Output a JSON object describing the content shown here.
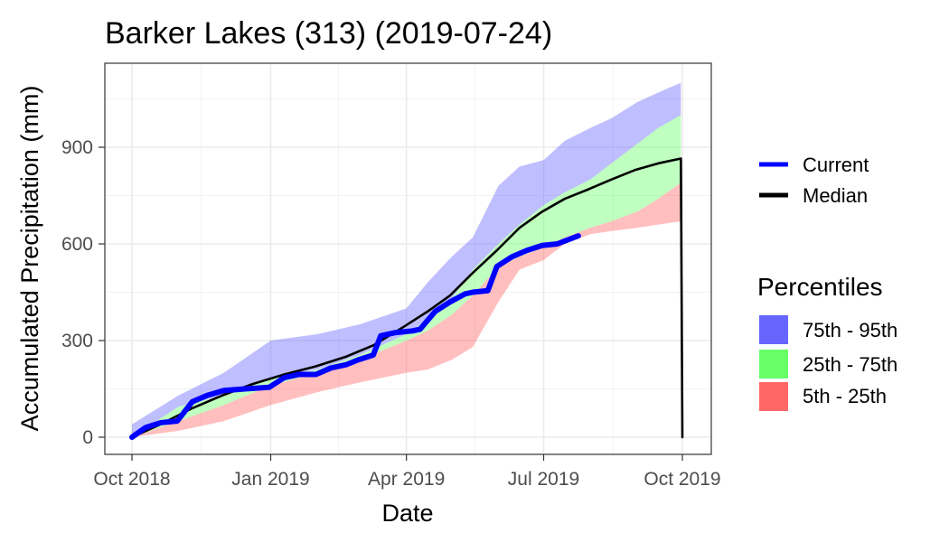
{
  "chart_data": {
    "type": "area",
    "title": "Barker Lakes (313) (2019-07-24)",
    "xlabel": "Date",
    "ylabel": "Accumulated Precipitation (mm)",
    "xlim": [
      "2018-10-01",
      "2019-10-01"
    ],
    "ylim": [
      0,
      1100
    ],
    "x_ticks": [
      "2018-10-01",
      "2019-01-01",
      "2019-04-01",
      "2019-07-01",
      "2019-10-01"
    ],
    "x_tick_labels": [
      "Oct 2018",
      "Jan 2019",
      "Apr 2019",
      "Jul 2019",
      "Oct 2019"
    ],
    "y_ticks": [
      0,
      300,
      600,
      900
    ],
    "y_tick_labels": [
      "0",
      "300",
      "600",
      "900"
    ],
    "grid": true,
    "legend_position": "right",
    "series": [
      {
        "name": "Current",
        "color": "#0000ff",
        "x": [
          "2018-10-01",
          "2018-10-10",
          "2018-10-20",
          "2018-10-31",
          "2018-11-10",
          "2018-11-20",
          "2018-12-01",
          "2018-12-15",
          "2018-12-31",
          "2019-01-10",
          "2019-01-20",
          "2019-01-31",
          "2019-02-10",
          "2019-02-20",
          "2019-02-28",
          "2019-03-10",
          "2019-03-15",
          "2019-03-25",
          "2019-04-05",
          "2019-04-10",
          "2019-04-20",
          "2019-04-30",
          "2019-05-10",
          "2019-05-15",
          "2019-05-25",
          "2019-05-31",
          "2019-06-10",
          "2019-06-20",
          "2019-06-30",
          "2019-07-10",
          "2019-07-24"
        ],
        "values": [
          0,
          30,
          45,
          50,
          110,
          130,
          145,
          150,
          155,
          185,
          195,
          195,
          215,
          225,
          240,
          255,
          315,
          325,
          330,
          335,
          390,
          420,
          445,
          450,
          455,
          530,
          560,
          580,
          595,
          600,
          625
        ]
      },
      {
        "name": "Median",
        "color": "#000000",
        "x": [
          "2018-10-01",
          "2018-10-20",
          "2018-11-10",
          "2018-11-30",
          "2018-12-20",
          "2019-01-10",
          "2019-01-31",
          "2019-02-20",
          "2019-03-10",
          "2019-03-31",
          "2019-04-15",
          "2019-04-30",
          "2019-05-15",
          "2019-05-31",
          "2019-06-15",
          "2019-06-30",
          "2019-07-15",
          "2019-07-31",
          "2019-08-15",
          "2019-08-31",
          "2019-09-15",
          "2019-09-30",
          "2019-10-01"
        ],
        "values": [
          0,
          40,
          90,
          130,
          165,
          195,
          220,
          250,
          285,
          345,
          390,
          440,
          510,
          580,
          650,
          700,
          740,
          770,
          800,
          830,
          850,
          865,
          0
        ]
      }
    ],
    "bands": [
      {
        "name": "75th - 95th",
        "color": "#6666ff",
        "x": [
          "2018-10-01",
          "2018-11-01",
          "2018-12-01",
          "2019-01-01",
          "2019-02-01",
          "2019-03-01",
          "2019-04-01",
          "2019-04-15",
          "2019-05-01",
          "2019-05-15",
          "2019-06-01",
          "2019-06-15",
          "2019-07-01",
          "2019-07-15",
          "2019-08-01",
          "2019-08-15",
          "2019-09-01",
          "2019-09-15",
          "2019-09-30"
        ],
        "lower": [
          0,
          95,
          130,
          185,
          210,
          255,
          320,
          365,
          430,
          520,
          600,
          660,
          720,
          760,
          800,
          850,
          910,
          960,
          1000
        ],
        "upper": [
          40,
          130,
          200,
          300,
          320,
          350,
          400,
          480,
          560,
          620,
          780,
          840,
          860,
          920,
          960,
          990,
          1040,
          1070,
          1100
        ]
      },
      {
        "name": "25th - 75th",
        "color": "#66ff66",
        "x": [
          "2018-10-01",
          "2018-11-01",
          "2018-12-01",
          "2019-01-01",
          "2019-02-01",
          "2019-03-01",
          "2019-04-01",
          "2019-04-15",
          "2019-05-01",
          "2019-05-15",
          "2019-06-01",
          "2019-06-15",
          "2019-07-01",
          "2019-07-15",
          "2019-08-01",
          "2019-08-15",
          "2019-09-01",
          "2019-09-15",
          "2019-09-30"
        ],
        "lower": [
          0,
          50,
          100,
          160,
          200,
          240,
          300,
          330,
          380,
          440,
          530,
          560,
          590,
          620,
          650,
          670,
          700,
          740,
          790
        ],
        "upper": [
          0,
          95,
          130,
          185,
          210,
          255,
          320,
          365,
          430,
          520,
          600,
          660,
          720,
          760,
          800,
          850,
          910,
          960,
          1000
        ]
      },
      {
        "name": "5th - 25th",
        "color": "#ff6666",
        "x": [
          "2018-10-01",
          "2018-11-01",
          "2018-12-01",
          "2019-01-01",
          "2019-02-01",
          "2019-03-01",
          "2019-04-01",
          "2019-04-15",
          "2019-05-01",
          "2019-05-15",
          "2019-06-01",
          "2019-06-15",
          "2019-07-01",
          "2019-07-15",
          "2019-08-01",
          "2019-08-15",
          "2019-09-01",
          "2019-09-15",
          "2019-09-30"
        ],
        "lower": [
          0,
          20,
          50,
          100,
          140,
          170,
          200,
          210,
          240,
          280,
          420,
          520,
          550,
          600,
          630,
          640,
          650,
          660,
          670
        ],
        "upper": [
          0,
          50,
          100,
          160,
          200,
          240,
          300,
          330,
          380,
          440,
          530,
          560,
          590,
          620,
          650,
          670,
          700,
          740,
          790
        ]
      }
    ],
    "legend": {
      "lines": [
        {
          "label": "Current",
          "color": "#0000ff"
        },
        {
          "label": "Median",
          "color": "#000000"
        }
      ],
      "percentiles_title": "Percentiles",
      "fills": [
        {
          "label": "75th - 95th",
          "color": "#6666ff"
        },
        {
          "label": "25th - 75th",
          "color": "#66ff66"
        },
        {
          "label": "5th - 25th",
          "color": "#ff6666"
        }
      ]
    }
  }
}
